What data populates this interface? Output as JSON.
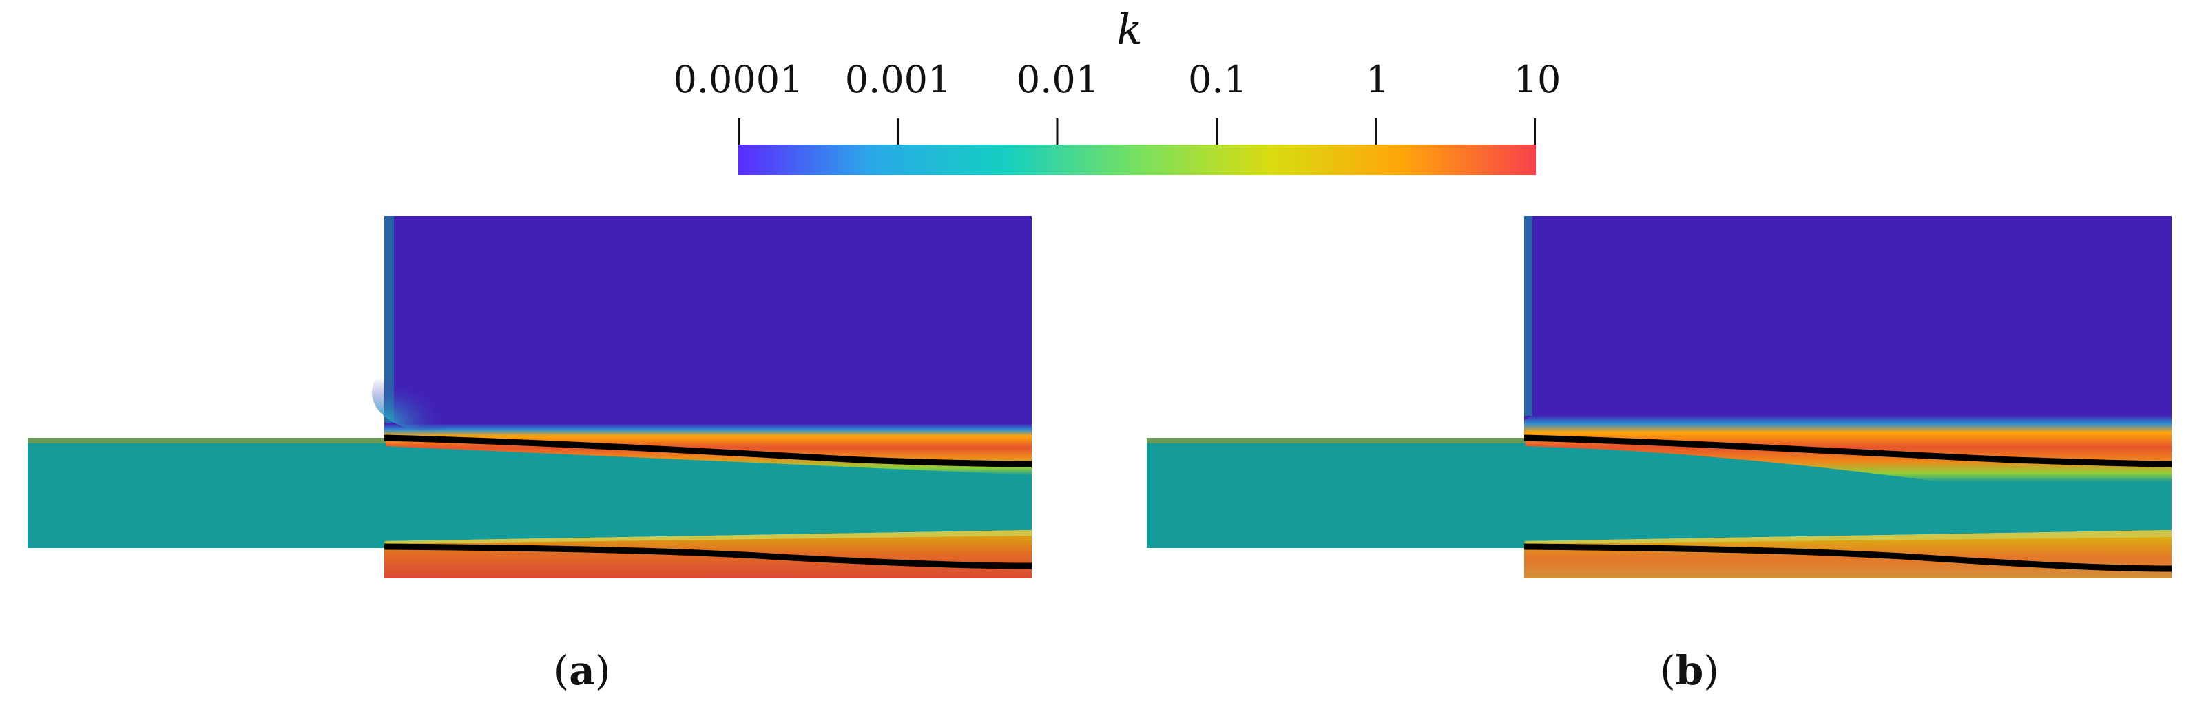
{
  "colorbar": {
    "title": "k",
    "tick_labels": [
      "0.0001",
      "0.001",
      "0.01",
      "0.1",
      "1",
      "10"
    ],
    "scale": "log",
    "range": [
      0.0001,
      10
    ],
    "colormap": [
      "#5b2cff",
      "#2aa8e8",
      "#14cfc2",
      "#78e060",
      "#d8dc10",
      "#ffa50a",
      "#f7414b"
    ]
  },
  "panels": [
    {
      "label_open": "(",
      "label_letter": "a",
      "label_close": ")"
    },
    {
      "label_open": "(",
      "label_letter": "b",
      "label_close": ")"
    }
  ],
  "colors": {
    "low_region": "#411fb5",
    "core_flow": "#169b9b",
    "shear_high": "#e05530",
    "interface_line": "#000000"
  }
}
